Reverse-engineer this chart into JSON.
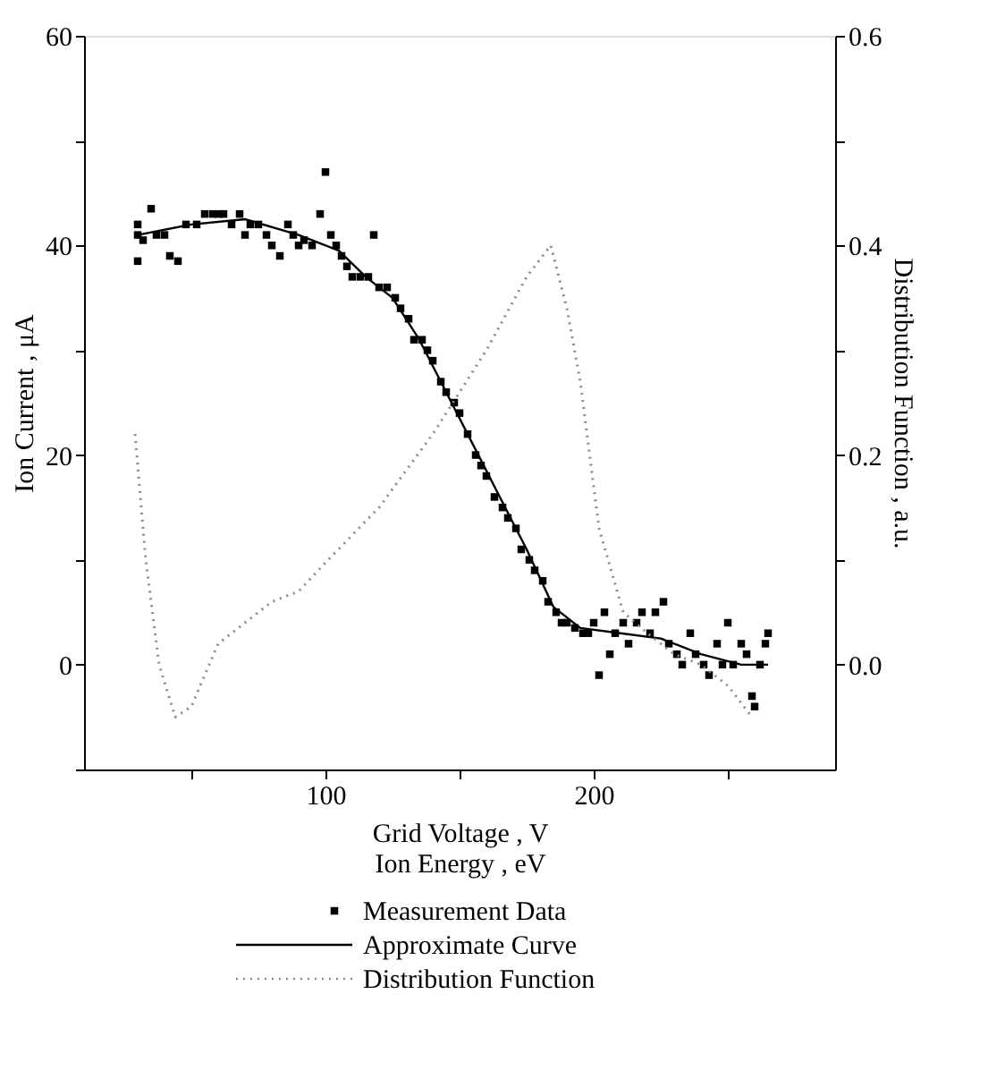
{
  "chart_data": {
    "type": "scatter",
    "xlabel": [
      "Grid Voltage , V",
      "Ion Energy , eV"
    ],
    "ylabel": "Ion Current , μA",
    "y2label": "Distribution Function , a.u.",
    "xlim": [
      10,
      290
    ],
    "xticks": [
      {
        "value": 50,
        "label": null
      },
      100,
      {
        "value": 150,
        "label": null
      },
      200,
      {
        "value": 250,
        "label": null
      }
    ],
    "ylim": [
      -10,
      60
    ],
    "yticks": [
      {
        "value": -10,
        "label": null
      },
      0,
      {
        "value": 10,
        "label": null
      },
      20,
      {
        "value": 30,
        "label": null
      },
      40,
      {
        "value": 50,
        "label": null
      },
      60
    ],
    "y2lim": [
      -0.1,
      0.6
    ],
    "y2ticks": [
      {
        "value": 0,
        "label": "0.0"
      },
      {
        "value": 0.1,
        "label": null
      },
      0.2,
      {
        "value": 0.3,
        "label": null
      },
      0.4,
      {
        "value": 0.5,
        "label": null
      },
      0.6
    ],
    "grid": false,
    "legend": "bottom",
    "series": [
      {
        "name": "Measurement Data",
        "marker": "square",
        "color": "#000000",
        "x": [
          30,
          30,
          30,
          32,
          35,
          37,
          40,
          42,
          45,
          48,
          52,
          55,
          58,
          60,
          62,
          65,
          68,
          70,
          72,
          75,
          78,
          80,
          83,
          86,
          88,
          90,
          92,
          95,
          98,
          100,
          102,
          104,
          106,
          108,
          110,
          113,
          116,
          118,
          120,
          123,
          126,
          128,
          131,
          133,
          136,
          138,
          140,
          143,
          145,
          148,
          150,
          153,
          156,
          158,
          160,
          163,
          166,
          168,
          171,
          173,
          176,
          178,
          181,
          183,
          186,
          188,
          190,
          193,
          196,
          198,
          200,
          202,
          204,
          206,
          208,
          211,
          213,
          216,
          218,
          221,
          223,
          226,
          228,
          231,
          233,
          236,
          238,
          241,
          243,
          246,
          248,
          250,
          252,
          255,
          257,
          259,
          260,
          262,
          264,
          265
        ],
        "values": [
          41,
          42,
          38.5,
          40.5,
          43.5,
          41,
          41,
          39,
          38.5,
          42,
          42,
          43,
          43,
          43,
          43,
          42,
          43,
          41,
          42,
          42,
          41,
          40,
          39,
          42,
          41,
          40,
          40.5,
          40,
          43,
          47,
          41,
          40,
          39,
          38,
          37,
          37,
          37,
          41,
          36,
          36,
          35,
          34,
          33,
          31,
          31,
          30,
          29,
          27,
          26,
          25,
          24,
          22,
          20,
          19,
          18,
          16,
          15,
          14,
          13,
          11,
          10,
          9,
          8,
          6,
          5,
          4,
          4,
          3.5,
          3,
          3,
          4,
          -1,
          5,
          1,
          3,
          4,
          2,
          4,
          5,
          3,
          5,
          6,
          2,
          1,
          0,
          3,
          1,
          0,
          -1,
          2,
          0,
          4,
          0,
          2,
          1,
          -3,
          -4,
          0,
          2,
          3
        ]
      },
      {
        "name": "Approximate Curve",
        "type": "line",
        "line_style": "solid",
        "color": "#000000",
        "x": [
          30,
          50,
          70,
          90,
          105,
          115,
          125,
          135,
          145,
          155,
          165,
          175,
          185,
          195,
          210,
          225,
          240,
          255,
          265
        ],
        "values": [
          41,
          42,
          42.5,
          41,
          39.5,
          37,
          35,
          31,
          26,
          21,
          16,
          11,
          5.5,
          3.5,
          3,
          2.5,
          1,
          0,
          0
        ]
      },
      {
        "name": "Distribution Function",
        "type": "line",
        "line_style": "dotted",
        "axis": "y2",
        "color": "#888888",
        "x": [
          29,
          33,
          38,
          44,
          50,
          60,
          70,
          80,
          90,
          101,
          120,
          140,
          160,
          175,
          184,
          190,
          195,
          202,
          211,
          220,
          230,
          240,
          250,
          259
        ],
        "values": [
          0.22,
          0.1,
          0.0,
          -0.05,
          -0.04,
          0.02,
          0.04,
          0.06,
          0.07,
          0.1,
          0.15,
          0.22,
          0.3,
          0.37,
          0.4,
          0.34,
          0.27,
          0.13,
          0.05,
          0.03,
          0.01,
          0.0,
          -0.02,
          -0.05
        ]
      }
    ]
  }
}
